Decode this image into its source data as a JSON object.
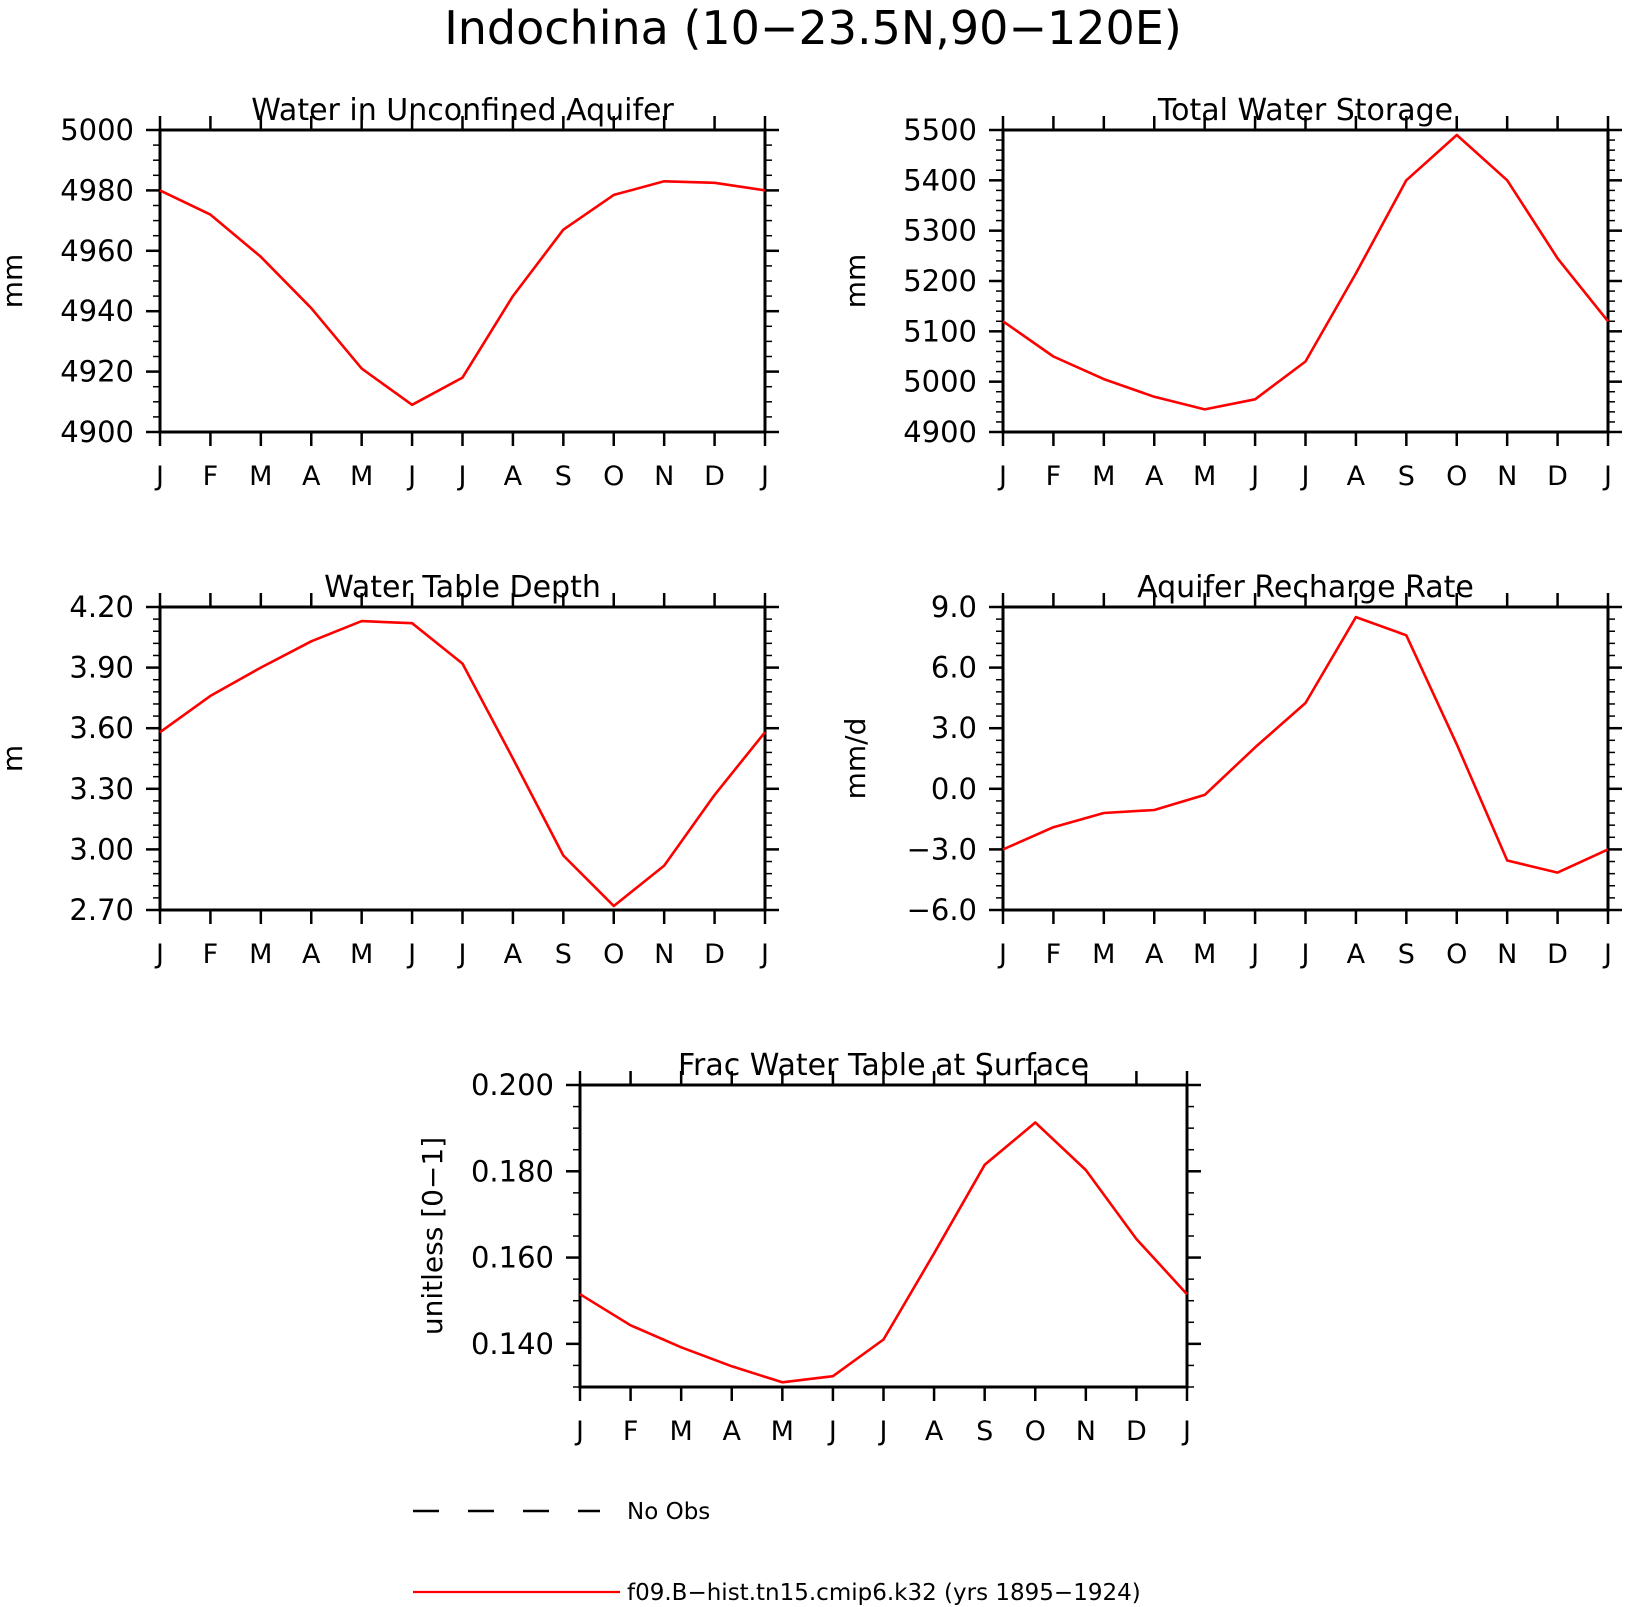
{
  "figure": {
    "title": "Indochina (10−23.5N,90−120E)",
    "legend": [
      {
        "label": "No Obs",
        "style": "dashed",
        "color": "#000000"
      },
      {
        "label": "f09.B−hist.tn15.cmip6.k32 (yrs 1895−1924)",
        "style": "solid",
        "color": "#ff0000"
      }
    ]
  },
  "chart_data": [
    {
      "type": "line",
      "title": "Water in Unconfined Aquifer",
      "ylabel": "mm",
      "categories": [
        "J",
        "F",
        "M",
        "A",
        "M",
        "J",
        "J",
        "A",
        "S",
        "O",
        "N",
        "D",
        "J"
      ],
      "yticks": [
        "4900",
        "4920",
        "4940",
        "4960",
        "4980",
        "5000"
      ],
      "ylim": [
        4900,
        5000
      ],
      "series": [
        {
          "name": "f09.B−hist.tn15.cmip6.k32 (yrs 1895−1924)",
          "color": "#ff0000",
          "values": [
            4980,
            4972,
            4958,
            4941,
            4921,
            4909,
            4918,
            4945,
            4967,
            4978.5,
            4983,
            4982.5,
            4980
          ]
        }
      ]
    },
    {
      "type": "line",
      "title": "Total Water Storage",
      "ylabel": "mm",
      "categories": [
        "J",
        "F",
        "M",
        "A",
        "M",
        "J",
        "J",
        "A",
        "S",
        "O",
        "N",
        "D",
        "J"
      ],
      "yticks": [
        "4900",
        "5000",
        "5100",
        "5200",
        "5300",
        "5400",
        "5500"
      ],
      "ylim": [
        4900,
        5500
      ],
      "series": [
        {
          "name": "f09.B−hist.tn15.cmip6.k32 (yrs 1895−1924)",
          "color": "#ff0000",
          "values": [
            5120,
            5050,
            5005,
            4970,
            4945,
            4965,
            5040,
            5215,
            5400,
            5490,
            5400,
            5245,
            5120
          ]
        }
      ]
    },
    {
      "type": "line",
      "title": "Water Table Depth",
      "ylabel": "m",
      "categories": [
        "J",
        "F",
        "M",
        "A",
        "M",
        "J",
        "J",
        "A",
        "S",
        "O",
        "N",
        "D",
        "J"
      ],
      "yticks": [
        "2.70",
        "3.00",
        "3.30",
        "3.60",
        "3.90",
        "4.20"
      ],
      "ylim": [
        2.7,
        4.2
      ],
      "series": [
        {
          "name": "f09.B−hist.tn15.cmip6.k32 (yrs 1895−1924)",
          "color": "#ff0000",
          "values": [
            3.58,
            3.76,
            3.9,
            4.03,
            4.13,
            4.12,
            3.92,
            3.45,
            2.97,
            2.72,
            2.92,
            3.27,
            3.58
          ]
        }
      ]
    },
    {
      "type": "line",
      "title": "Aquifer Recharge Rate",
      "ylabel": "mm/d",
      "categories": [
        "J",
        "F",
        "M",
        "A",
        "M",
        "J",
        "J",
        "A",
        "S",
        "O",
        "N",
        "D",
        "J"
      ],
      "yticks": [
        "−6.0",
        "−3.0",
        "0.0",
        "3.0",
        "6.0",
        "9.0"
      ],
      "ylim": [
        -6,
        9
      ],
      "series": [
        {
          "name": "f09.B−hist.tn15.cmip6.k32 (yrs 1895−1924)",
          "color": "#ff0000",
          "values": [
            -3.0,
            -1.9,
            -1.2,
            -1.05,
            -0.3,
            2.05,
            4.25,
            8.5,
            7.6,
            2.2,
            -3.55,
            -4.15,
            -3.0
          ]
        }
      ]
    },
    {
      "type": "line",
      "title": "Frac Water Table at Surface",
      "ylabel": "unitless [0−1]",
      "categories": [
        "J",
        "F",
        "M",
        "A",
        "M",
        "J",
        "J",
        "A",
        "S",
        "O",
        "N",
        "D",
        "J"
      ],
      "yticks": [
        "0.140",
        "0.160",
        "0.180",
        "0.200"
      ],
      "ylim": [
        0.13,
        0.2
      ],
      "series": [
        {
          "name": "f09.B−hist.tn15.cmip6.k32 (yrs 1895−1924)",
          "color": "#ff0000",
          "values": [
            0.1515,
            0.1443,
            0.1392,
            0.1348,
            0.1311,
            0.1325,
            0.141,
            0.161,
            0.1815,
            0.1913,
            0.1803,
            0.1643,
            0.1515
          ]
        }
      ]
    }
  ]
}
